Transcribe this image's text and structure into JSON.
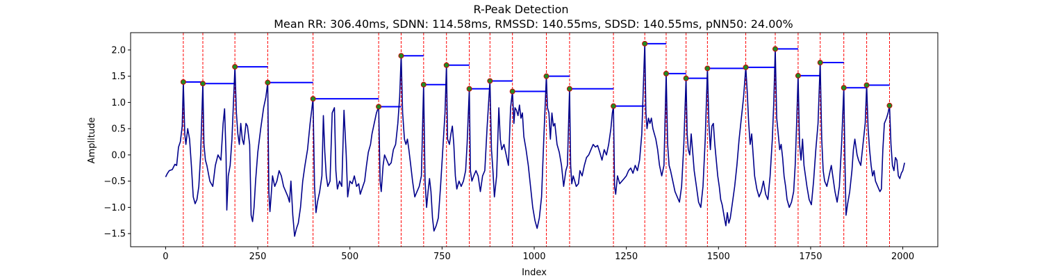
{
  "chart_data": {
    "type": "line",
    "title": "R-Peak Detection",
    "subtitle": "Mean RR: 306.40ms, SDNN: 114.58ms, RMSSD: 140.55ms, SDSD: 140.55ms, pNN50: 24.00%",
    "xlabel": "Index",
    "ylabel": "Amplitude",
    "xlim": [
      -95,
      2095
    ],
    "ylim": [
      -1.75,
      2.33
    ],
    "xticks": [
      0,
      250,
      500,
      750,
      1000,
      1250,
      1500,
      1750,
      2000
    ],
    "yticks": [
      -1.5,
      -1.0,
      -0.5,
      0.0,
      0.5,
      1.0,
      1.5,
      2.0
    ],
    "grid": false,
    "colors": {
      "signal": "#00008b",
      "peak_marker": "#228b22",
      "peak_marker_edge": "#cc0000",
      "peak_line": "#ff0000",
      "rr_segment": "#0000ff"
    },
    "signal": [
      [
        0,
        -0.42
      ],
      [
        5,
        -0.35
      ],
      [
        10,
        -0.3
      ],
      [
        18,
        -0.28
      ],
      [
        25,
        -0.18
      ],
      [
        30,
        -0.2
      ],
      [
        35,
        0.15
      ],
      [
        40,
        0.25
      ],
      [
        45,
        0.55
      ],
      [
        48,
        1.39
      ],
      [
        52,
        0.4
      ],
      [
        55,
        0.2
      ],
      [
        60,
        0.5
      ],
      [
        65,
        0.3
      ],
      [
        70,
        -0.2
      ],
      [
        75,
        -0.8
      ],
      [
        80,
        -0.93
      ],
      [
        85,
        -0.85
      ],
      [
        90,
        -0.6
      ],
      [
        95,
        0.0
      ],
      [
        101,
        1.36
      ],
      [
        104,
        0.2
      ],
      [
        108,
        -0.1
      ],
      [
        112,
        -0.2
      ],
      [
        120,
        -0.5
      ],
      [
        128,
        -0.6
      ],
      [
        135,
        -0.2
      ],
      [
        142,
        0.0
      ],
      [
        150,
        -0.1
      ],
      [
        156,
        0.6
      ],
      [
        160,
        0.88
      ],
      [
        164,
        0.0
      ],
      [
        166,
        -1.05
      ],
      [
        170,
        -0.4
      ],
      [
        175,
        -0.2
      ],
      [
        180,
        0.3
      ],
      [
        188,
        1.68
      ],
      [
        192,
        0.8
      ],
      [
        196,
        0.4
      ],
      [
        200,
        0.2
      ],
      [
        204,
        0.6
      ],
      [
        208,
        0.3
      ],
      [
        212,
        0.2
      ],
      [
        218,
        0.6
      ],
      [
        222,
        0.55
      ],
      [
        228,
        0.2
      ],
      [
        232,
        -1.15
      ],
      [
        236,
        -1.27
      ],
      [
        240,
        -1.0
      ],
      [
        244,
        -0.5
      ],
      [
        250,
        0.05
      ],
      [
        258,
        0.5
      ],
      [
        266,
        0.9
      ],
      [
        272,
        1.1
      ],
      [
        277,
        1.38
      ],
      [
        280,
        -0.7
      ],
      [
        283,
        -1.08
      ],
      [
        286,
        -0.8
      ],
      [
        290,
        -0.4
      ],
      [
        296,
        -0.6
      ],
      [
        302,
        -0.5
      ],
      [
        308,
        -0.3
      ],
      [
        314,
        -0.4
      ],
      [
        320,
        -0.6
      ],
      [
        326,
        -0.7
      ],
      [
        332,
        -0.8
      ],
      [
        336,
        -0.9
      ],
      [
        340,
        -0.5
      ],
      [
        345,
        -1.15
      ],
      [
        350,
        -1.55
      ],
      [
        355,
        -1.4
      ],
      [
        360,
        -1.3
      ],
      [
        366,
        -1.0
      ],
      [
        372,
        -0.5
      ],
      [
        378,
        -0.2
      ],
      [
        385,
        0.1
      ],
      [
        392,
        0.6
      ],
      [
        397,
        0.9
      ],
      [
        400,
        1.07
      ],
      [
        404,
        -0.6
      ],
      [
        408,
        -1.1
      ],
      [
        412,
        -0.9
      ],
      [
        418,
        -0.7
      ],
      [
        424,
        -0.4
      ],
      [
        428,
        0.75
      ],
      [
        432,
        0.05
      ],
      [
        436,
        -0.4
      ],
      [
        440,
        -0.6
      ],
      [
        446,
        -0.5
      ],
      [
        452,
        0.8
      ],
      [
        458,
        0.9
      ],
      [
        462,
        -0.3
      ],
      [
        466,
        -0.65
      ],
      [
        472,
        -0.5
      ],
      [
        478,
        -0.6
      ],
      [
        484,
        0.85
      ],
      [
        490,
        0.0
      ],
      [
        494,
        -0.8
      ],
      [
        500,
        -0.5
      ],
      [
        506,
        -0.55
      ],
      [
        512,
        -0.4
      ],
      [
        518,
        -0.6
      ],
      [
        524,
        -0.55
      ],
      [
        528,
        -0.75
      ],
      [
        535,
        -0.6
      ],
      [
        540,
        -0.5
      ],
      [
        545,
        -0.2
      ],
      [
        550,
        0.05
      ],
      [
        556,
        0.2
      ],
      [
        560,
        0.4
      ],
      [
        566,
        0.6
      ],
      [
        572,
        0.8
      ],
      [
        578,
        0.92
      ],
      [
        582,
        -0.5
      ],
      [
        585,
        -0.7
      ],
      [
        590,
        -0.2
      ],
      [
        594,
        0.0
      ],
      [
        600,
        -0.1
      ],
      [
        606,
        -0.2
      ],
      [
        612,
        -0.15
      ],
      [
        618,
        0.1
      ],
      [
        624,
        0.2
      ],
      [
        630,
        0.6
      ],
      [
        635,
        1.1
      ],
      [
        639,
        1.89
      ],
      [
        643,
        0.8
      ],
      [
        648,
        0.3
      ],
      [
        652,
        0.2
      ],
      [
        656,
        0.3
      ],
      [
        660,
        0.1
      ],
      [
        665,
        -0.2
      ],
      [
        670,
        -0.5
      ],
      [
        676,
        -0.8
      ],
      [
        682,
        -0.7
      ],
      [
        688,
        -0.6
      ],
      [
        694,
        -0.4
      ],
      [
        700,
        1.34
      ],
      [
        704,
        -0.5
      ],
      [
        708,
        -1.0
      ],
      [
        712,
        -0.7
      ],
      [
        716,
        -0.45
      ],
      [
        720,
        -0.7
      ],
      [
        724,
        -1.2
      ],
      [
        728,
        -1.45
      ],
      [
        734,
        -1.35
      ],
      [
        740,
        -1.2
      ],
      [
        746,
        -0.6
      ],
      [
        752,
        0.1
      ],
      [
        758,
        0.8
      ],
      [
        762,
        1.71
      ],
      [
        765,
        0.3
      ],
      [
        770,
        0.2
      ],
      [
        774,
        0.4
      ],
      [
        778,
        0.55
      ],
      [
        782,
        0.2
      ],
      [
        786,
        -0.4
      ],
      [
        790,
        -0.65
      ],
      [
        796,
        -0.5
      ],
      [
        802,
        -0.6
      ],
      [
        808,
        -0.5
      ],
      [
        814,
        -0.3
      ],
      [
        818,
        0.2
      ],
      [
        824,
        1.26
      ],
      [
        827,
        -0.3
      ],
      [
        831,
        -0.5
      ],
      [
        836,
        -0.4
      ],
      [
        842,
        -0.3
      ],
      [
        848,
        -0.4
      ],
      [
        854,
        -0.7
      ],
      [
        860,
        -0.4
      ],
      [
        866,
        -0.3
      ],
      [
        872,
        0.5
      ],
      [
        880,
        1.41
      ],
      [
        884,
        0.1
      ],
      [
        888,
        -0.3
      ],
      [
        892,
        -0.8
      ],
      [
        898,
        -0.4
      ],
      [
        904,
        0.9
      ],
      [
        908,
        0.3
      ],
      [
        912,
        0.1
      ],
      [
        918,
        0.2
      ],
      [
        924,
        0.0
      ],
      [
        930,
        -0.2
      ],
      [
        936,
        0.9
      ],
      [
        941,
        1.21
      ],
      [
        945,
        0.6
      ],
      [
        948,
        0.9
      ],
      [
        952,
        0.85
      ],
      [
        956,
        0.75
      ],
      [
        960,
        0.95
      ],
      [
        964,
        0.7
      ],
      [
        968,
        0.8
      ],
      [
        972,
        0.35
      ],
      [
        978,
        0.1
      ],
      [
        984,
        -0.2
      ],
      [
        990,
        -0.6
      ],
      [
        996,
        -1.0
      ],
      [
        1002,
        -1.25
      ],
      [
        1008,
        -1.4
      ],
      [
        1014,
        -1.2
      ],
      [
        1020,
        -0.8
      ],
      [
        1026,
        0.3
      ],
      [
        1033,
        1.5
      ],
      [
        1036,
        0.9
      ],
      [
        1040,
        0.8
      ],
      [
        1044,
        0.3
      ],
      [
        1048,
        0.8
      ],
      [
        1052,
        0.55
      ],
      [
        1056,
        0.6
      ],
      [
        1062,
        0.2
      ],
      [
        1068,
        0.05
      ],
      [
        1074,
        -0.2
      ],
      [
        1080,
        -0.6
      ],
      [
        1086,
        -0.3
      ],
      [
        1090,
        -0.2
      ],
      [
        1096,
        1.26
      ],
      [
        1099,
        -0.2
      ],
      [
        1102,
        -0.55
      ],
      [
        1106,
        -0.4
      ],
      [
        1110,
        -0.5
      ],
      [
        1114,
        -0.6
      ],
      [
        1120,
        -0.55
      ],
      [
        1124,
        -0.3
      ],
      [
        1130,
        -0.4
      ],
      [
        1136,
        -0.2
      ],
      [
        1142,
        -0.05
      ],
      [
        1148,
        0.0
      ],
      [
        1154,
        0.1
      ],
      [
        1160,
        0.2
      ],
      [
        1166,
        0.15
      ],
      [
        1172,
        0.18
      ],
      [
        1178,
        0.05
      ],
      [
        1184,
        -0.1
      ],
      [
        1190,
        0.1
      ],
      [
        1196,
        0.0
      ],
      [
        1202,
        0.2
      ],
      [
        1208,
        0.5
      ],
      [
        1212,
        0.8
      ],
      [
        1215,
        0.93
      ],
      [
        1218,
        -0.6
      ],
      [
        1221,
        -0.75
      ],
      [
        1226,
        -0.4
      ],
      [
        1232,
        -0.55
      ],
      [
        1238,
        -0.5
      ],
      [
        1244,
        -0.45
      ],
      [
        1250,
        -0.4
      ],
      [
        1256,
        -0.3
      ],
      [
        1262,
        -0.25
      ],
      [
        1268,
        -0.35
      ],
      [
        1274,
        -0.2
      ],
      [
        1280,
        -0.3
      ],
      [
        1286,
        -0.1
      ],
      [
        1292,
        0.4
      ],
      [
        1297,
        1.5
      ],
      [
        1300,
        2.12
      ],
      [
        1303,
        0.8
      ],
      [
        1306,
        0.5
      ],
      [
        1310,
        0.7
      ],
      [
        1314,
        0.6
      ],
      [
        1318,
        0.7
      ],
      [
        1322,
        0.5
      ],
      [
        1326,
        0.4
      ],
      [
        1330,
        0.3
      ],
      [
        1335,
        0.1
      ],
      [
        1340,
        -0.2
      ],
      [
        1346,
        -0.4
      ],
      [
        1352,
        -0.2
      ],
      [
        1358,
        1.55
      ],
      [
        1362,
        0.2
      ],
      [
        1366,
        -0.2
      ],
      [
        1370,
        -0.3
      ],
      [
        1376,
        -0.5
      ],
      [
        1382,
        -0.7
      ],
      [
        1388,
        -0.8
      ],
      [
        1394,
        -0.9
      ],
      [
        1400,
        -0.6
      ],
      [
        1406,
        0.2
      ],
      [
        1412,
        1.46
      ],
      [
        1415,
        0.4
      ],
      [
        1418,
        0.1
      ],
      [
        1422,
        0.0
      ],
      [
        1426,
        0.4
      ],
      [
        1430,
        0.05
      ],
      [
        1434,
        -0.3
      ],
      [
        1440,
        -0.6
      ],
      [
        1446,
        -0.9
      ],
      [
        1452,
        -1.0
      ],
      [
        1458,
        -0.6
      ],
      [
        1464,
        0.3
      ],
      [
        1470,
        1.65
      ],
      [
        1474,
        0.6
      ],
      [
        1478,
        0.1
      ],
      [
        1482,
        0.55
      ],
      [
        1486,
        0.6
      ],
      [
        1490,
        0.2
      ],
      [
        1494,
        -0.1
      ],
      [
        1498,
        -0.4
      ],
      [
        1502,
        -0.6
      ],
      [
        1506,
        -0.85
      ],
      [
        1510,
        -0.95
      ],
      [
        1516,
        -1.2
      ],
      [
        1520,
        -1.35
      ],
      [
        1524,
        -1.1
      ],
      [
        1528,
        -1.3
      ],
      [
        1532,
        -1.2
      ],
      [
        1538,
        -0.9
      ],
      [
        1544,
        -0.6
      ],
      [
        1550,
        -0.2
      ],
      [
        1556,
        0.3
      ],
      [
        1562,
        0.7
      ],
      [
        1568,
        1.1
      ],
      [
        1574,
        1.67
      ],
      [
        1578,
        1.2
      ],
      [
        1582,
        0.6
      ],
      [
        1586,
        0.2
      ],
      [
        1590,
        0.4
      ],
      [
        1594,
        0.0
      ],
      [
        1598,
        -0.4
      ],
      [
        1604,
        -0.65
      ],
      [
        1610,
        -0.8
      ],
      [
        1616,
        -0.7
      ],
      [
        1622,
        -0.5
      ],
      [
        1628,
        -0.75
      ],
      [
        1634,
        -0.85
      ],
      [
        1640,
        -0.4
      ],
      [
        1646,
        0.3
      ],
      [
        1650,
        1.0
      ],
      [
        1654,
        2.02
      ],
      [
        1658,
        0.7
      ],
      [
        1662,
        0.4
      ],
      [
        1666,
        0.1
      ],
      [
        1670,
        0.2
      ],
      [
        1674,
        -0.05
      ],
      [
        1678,
        -0.4
      ],
      [
        1682,
        -0.6
      ],
      [
        1686,
        -0.85
      ],
      [
        1692,
        -1.0
      ],
      [
        1698,
        -0.9
      ],
      [
        1704,
        -0.7
      ],
      [
        1708,
        -0.2
      ],
      [
        1712,
        0.6
      ],
      [
        1716,
        1.51
      ],
      [
        1720,
        0.2
      ],
      [
        1724,
        -0.1
      ],
      [
        1728,
        0.3
      ],
      [
        1732,
        -0.2
      ],
      [
        1736,
        -0.4
      ],
      [
        1740,
        -0.6
      ],
      [
        1746,
        -0.85
      ],
      [
        1752,
        -0.95
      ],
      [
        1758,
        -0.5
      ],
      [
        1764,
        0.1
      ],
      [
        1770,
        0.6
      ],
      [
        1776,
        1.76
      ],
      [
        1780,
        0.3
      ],
      [
        1784,
        -0.3
      ],
      [
        1788,
        -0.5
      ],
      [
        1794,
        -0.6
      ],
      [
        1800,
        -0.4
      ],
      [
        1806,
        -0.2
      ],
      [
        1810,
        -0.4
      ],
      [
        1816,
        -0.7
      ],
      [
        1822,
        -0.9
      ],
      [
        1828,
        -0.6
      ],
      [
        1834,
        0.2
      ],
      [
        1840,
        1.28
      ],
      [
        1843,
        -0.1
      ],
      [
        1846,
        -1.15
      ],
      [
        1850,
        -0.95
      ],
      [
        1856,
        -0.7
      ],
      [
        1862,
        -0.3
      ],
      [
        1866,
        0.1
      ],
      [
        1870,
        0.3
      ],
      [
        1876,
        0.0
      ],
      [
        1880,
        -0.1
      ],
      [
        1886,
        -0.2
      ],
      [
        1892,
        0.2
      ],
      [
        1898,
        0.6
      ],
      [
        1902,
        1.33
      ],
      [
        1906,
        0.5
      ],
      [
        1910,
        0.1
      ],
      [
        1914,
        -0.2
      ],
      [
        1918,
        -0.4
      ],
      [
        1922,
        -0.3
      ],
      [
        1926,
        -0.5
      ],
      [
        1932,
        -0.6
      ],
      [
        1938,
        -0.7
      ],
      [
        1942,
        -0.65
      ],
      [
        1946,
        0.1
      ],
      [
        1950,
        0.6
      ],
      [
        1956,
        0.7
      ],
      [
        1960,
        0.8
      ],
      [
        1964,
        0.94
      ],
      [
        1968,
        0.2
      ],
      [
        1972,
        -0.2
      ],
      [
        1976,
        -0.3
      ],
      [
        1980,
        -0.05
      ],
      [
        1984,
        -0.1
      ],
      [
        1988,
        -0.4
      ],
      [
        1992,
        -0.45
      ],
      [
        1996,
        -0.35
      ],
      [
        2000,
        -0.3
      ],
      [
        2005,
        -0.15
      ]
    ],
    "peaks": [
      [
        48,
        1.39
      ],
      [
        101,
        1.36
      ],
      [
        188,
        1.68
      ],
      [
        277,
        1.38
      ],
      [
        400,
        1.07
      ],
      [
        578,
        0.92
      ],
      [
        639,
        1.89
      ],
      [
        700,
        1.34
      ],
      [
        762,
        1.71
      ],
      [
        824,
        1.26
      ],
      [
        880,
        1.41
      ],
      [
        941,
        1.21
      ],
      [
        1033,
        1.5
      ],
      [
        1096,
        1.26
      ],
      [
        1215,
        0.93
      ],
      [
        1300,
        2.12
      ],
      [
        1358,
        1.55
      ],
      [
        1412,
        1.46
      ],
      [
        1470,
        1.65
      ],
      [
        1574,
        1.67
      ],
      [
        1654,
        2.02
      ],
      [
        1716,
        1.51
      ],
      [
        1776,
        1.76
      ],
      [
        1840,
        1.28
      ],
      [
        1902,
        1.33
      ],
      [
        1964,
        0.94
      ]
    ]
  }
}
